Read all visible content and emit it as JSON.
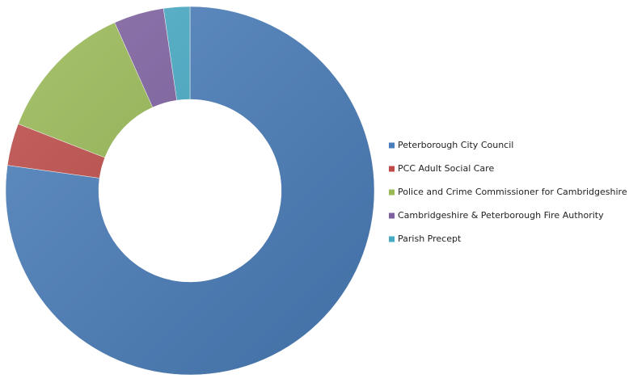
{
  "chart_data": {
    "type": "donut",
    "categories": [
      "Peterborough City Council",
      "PCC Adult Social Care",
      "Police and Crime Commissioner for Cambridgeshire",
      "Cambridgeshire & Peterborough Fire Authority",
      "Parish Precept"
    ],
    "values": [
      77.2,
      3.7,
      12.4,
      4.4,
      2.3
    ],
    "colors": [
      "#4a7ebb",
      "#be4b48",
      "#98b954",
      "#7d60a0",
      "#46aac5"
    ],
    "legend": "right"
  }
}
